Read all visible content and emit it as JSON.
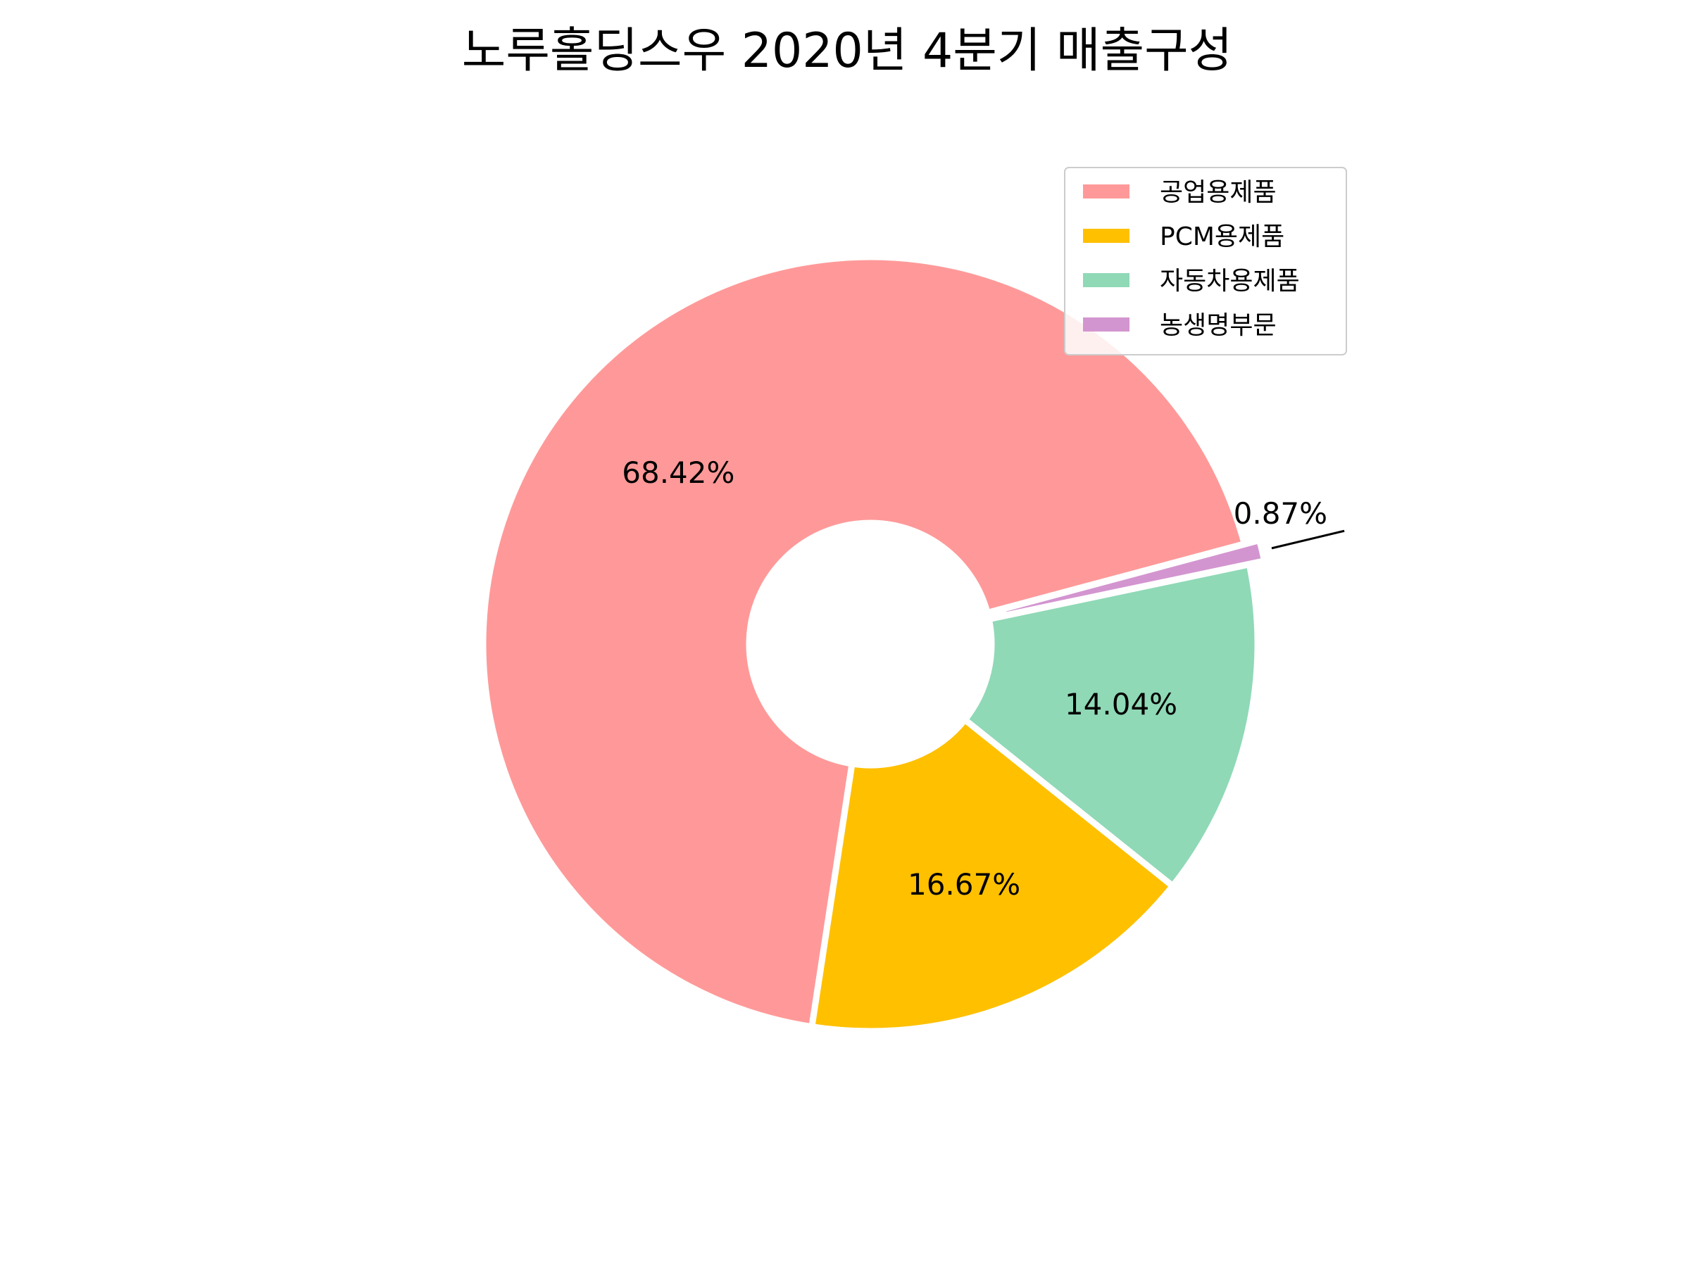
{
  "chart_data": {
    "type": "pie",
    "variant": "donut",
    "title": "노루홀딩스우 2020년 4분기 매출구성",
    "slices": [
      {
        "name": "공업용제품",
        "value": 68.42,
        "label": "68.42%",
        "color": "#ff9999"
      },
      {
        "name": "PCM용제품",
        "value": 16.67,
        "label": "16.67%",
        "color": "#ffc000"
      },
      {
        "name": "자동차용제품",
        "value": 14.04,
        "label": "14.04%",
        "color": "#8fd9b6"
      },
      {
        "name": "농생명부문",
        "value": 0.87,
        "label": "0.87%",
        "color": "#d395d0"
      }
    ],
    "start_angle_deg": 15,
    "direction": "counterclockwise",
    "exploded_slice": "농생명부문",
    "legend_placement": "upper-right"
  }
}
